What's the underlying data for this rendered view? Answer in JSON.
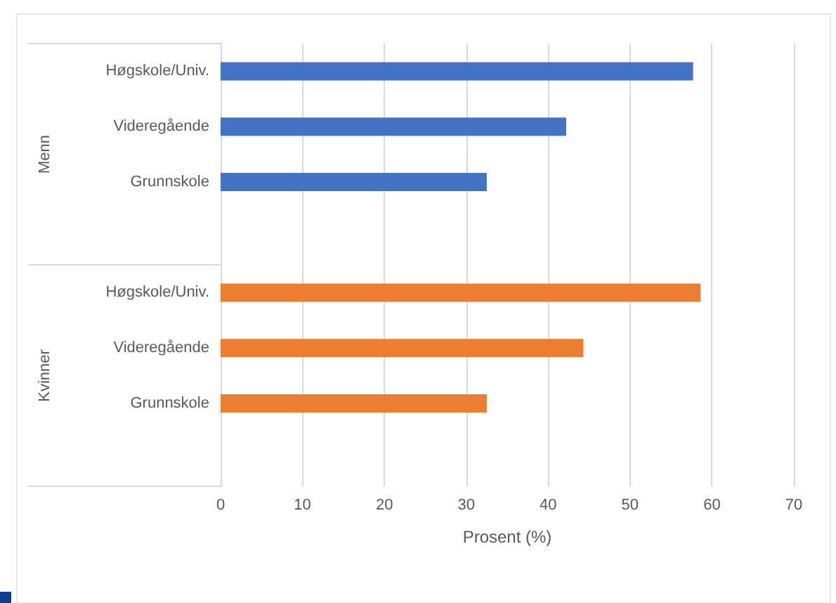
{
  "chart_data": {
    "type": "bar",
    "orientation": "horizontal",
    "xlabel": "Prosent (%)",
    "categories": [
      "Høgskole/Univ.",
      "Videregående",
      "Grunnskole",
      null,
      "Høgskole/Univ.",
      "Videregående",
      "Grunnskole",
      null
    ],
    "series": [
      {
        "color": "#4472c4",
        "values": [
          57.7,
          42.2,
          32.5,
          null,
          null,
          null,
          null,
          null
        ]
      },
      {
        "color": "#ed7d31",
        "values": [
          null,
          null,
          null,
          null,
          58.6,
          44.3,
          32.5,
          null
        ]
      }
    ],
    "xlim": [
      0,
      70
    ],
    "xticks": [
      0,
      10,
      20,
      30,
      40,
      50,
      60,
      70
    ],
    "grid": "x",
    "annotations": [
      "Menn",
      "Kvinner"
    ]
  }
}
